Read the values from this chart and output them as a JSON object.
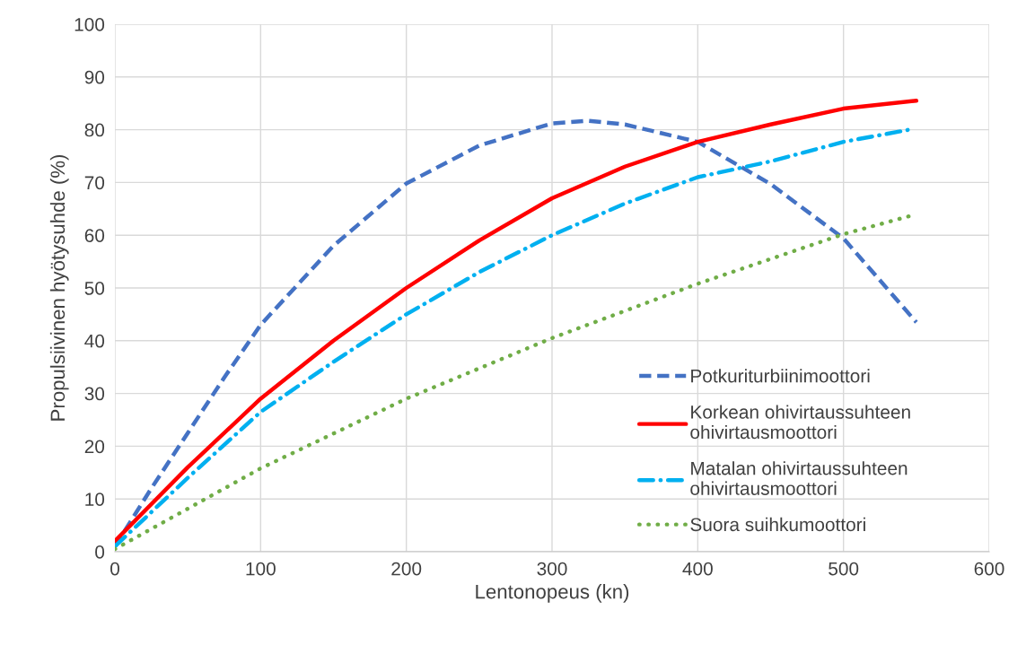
{
  "chart_data": {
    "type": "line",
    "xlabel": "Lentonopeus (kn)",
    "ylabel": "Propulsiivinen hyötysuhde (%)",
    "xlim": [
      0,
      600
    ],
    "xticks": [
      0,
      100,
      200,
      300,
      400,
      500,
      600
    ],
    "ylim": [
      0,
      100
    ],
    "yticks": [
      0,
      10,
      20,
      30,
      40,
      50,
      60,
      70,
      80,
      90,
      100
    ],
    "grid": true,
    "legend": "right",
    "marker": "none",
    "series": [
      {
        "name": "Potkuriturbiinimoottori",
        "color": "#4472c4",
        "line_style": "dashed",
        "x": [
          0,
          25,
          50,
          75,
          100,
          150,
          200,
          250,
          300,
          325,
          350,
          400,
          450,
          500,
          550
        ],
        "values": [
          1,
          12,
          22.5,
          33,
          43,
          58,
          69.8,
          77,
          81.2,
          81.7,
          81,
          77.7,
          69.7,
          59.4,
          43.5
        ]
      },
      {
        "name": "Korkean ohivirtaussuhteen\nohivirtausmoottori",
        "color": "#ff0000",
        "line_style": "solid",
        "x": [
          0,
          50,
          100,
          150,
          200,
          250,
          300,
          350,
          400,
          450,
          500,
          550
        ],
        "values": [
          2,
          16,
          29,
          40,
          50,
          59,
          67,
          73,
          77.7,
          81,
          84,
          85.5
        ]
      },
      {
        "name": "Matalan ohivirtaussuhteen\nohivirtausmoottori",
        "color": "#00b0f0",
        "line_style": "dashdot",
        "x": [
          0,
          50,
          100,
          150,
          200,
          250,
          300,
          350,
          400,
          450,
          500,
          545
        ],
        "values": [
          1,
          14,
          26.5,
          36,
          45,
          53,
          60,
          66,
          71,
          74,
          77.7,
          80
        ]
      },
      {
        "name": "Suora suihkumoottori",
        "color": "#70ad47",
        "line_style": "dotted",
        "x": [
          0,
          100,
          200,
          300,
          400,
          500,
          545
        ],
        "values": [
          0.5,
          15.8,
          29,
          40.5,
          50.8,
          60.2,
          63.6
        ]
      }
    ]
  }
}
